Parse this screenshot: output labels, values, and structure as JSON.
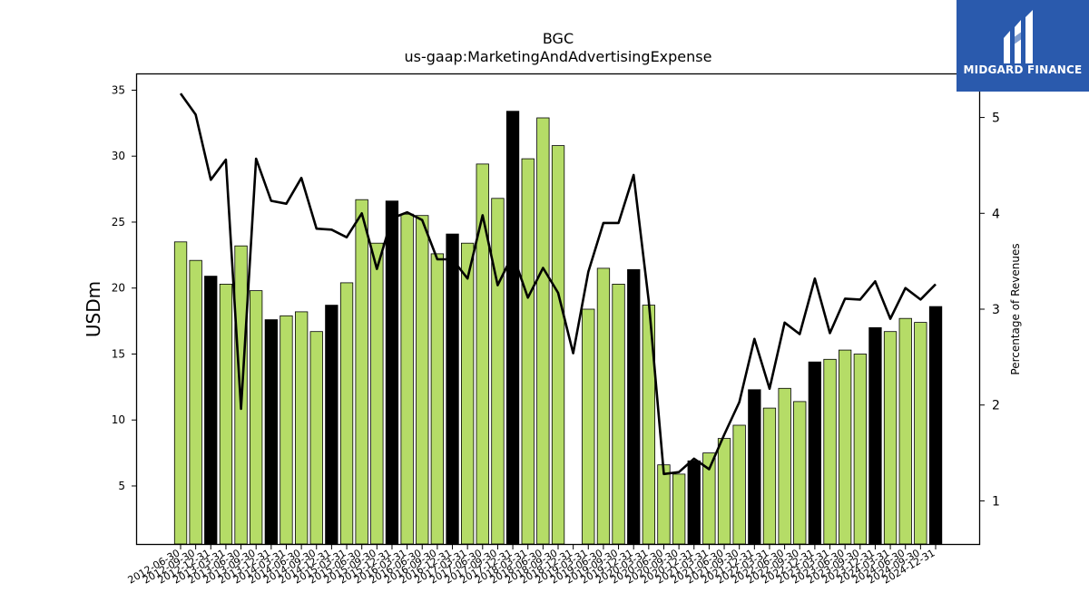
{
  "brand": {
    "name": "MIDGARD FINANCE",
    "bg": "#2a5aad"
  },
  "chart_data": {
    "type": "bar",
    "title": "BGC",
    "subtitle": "us-gaap:MarketingAndAdvertisingExpense",
    "ylabel": "USDm",
    "y2label": "Percentage of Revenues",
    "ylim": [
      0.6,
      36.2
    ],
    "y2lim": [
      0.55,
      5.45
    ],
    "yticks": [
      5,
      10,
      15,
      20,
      25,
      30,
      35
    ],
    "y2ticks": [
      1,
      2,
      3,
      4,
      5
    ],
    "colors": {
      "quarter": "#b5dc67",
      "fiscal_year_end": "#000000",
      "line": "#000000"
    },
    "categories": [
      "2012-06-30",
      "2012-09-30",
      "2012-12-31",
      "2013-03-31",
      "2013-06-30",
      "2013-09-30",
      "2013-12-31",
      "2014-03-31",
      "2014-06-30",
      "2014-09-30",
      "2014-12-31",
      "2015-03-31",
      "2015-06-30",
      "2015-09-30",
      "2015-12-31",
      "2016-03-31",
      "2016-06-30",
      "2016-09-30",
      "2016-12-31",
      "2017-03-31",
      "2017-06-30",
      "2017-09-30",
      "2017-12-31",
      "2018-03-31",
      "2018-06-30",
      "2018-09-30",
      "2018-12-31",
      "2019-03-31",
      "2019-06-30",
      "2019-09-30",
      "2019-12-31",
      "2020-03-31",
      "2020-06-30",
      "2020-09-30",
      "2020-12-31",
      "2021-03-31",
      "2021-06-30",
      "2021-09-30",
      "2021-12-31",
      "2022-03-31",
      "2022-06-30",
      "2022-09-30",
      "2022-12-31",
      "2023-03-31",
      "2023-06-30",
      "2023-09-30",
      "2023-12-31",
      "2024-03-31",
      "2024-06-30",
      "2024-09-30",
      "2024-12-31"
    ],
    "series": [
      {
        "kind": "bar",
        "values": [
          23.5,
          22.1,
          20.9,
          20.3,
          23.2,
          19.8,
          17.6,
          17.9,
          18.2,
          16.7,
          18.7,
          20.4,
          26.7,
          23.4,
          26.6,
          25.6,
          25.5,
          22.6,
          24.1,
          23.4,
          29.4,
          26.8,
          33.4,
          29.8,
          32.9,
          30.8,
          null,
          18.4,
          21.5,
          20.3,
          21.4,
          18.7,
          6.6,
          5.9,
          6.9,
          7.5,
          8.6,
          9.6,
          12.3,
          10.9,
          12.4,
          11.4,
          14.4,
          14.6,
          15.3,
          15.0,
          17.0,
          16.7,
          17.7,
          17.4,
          18.6
        ],
        "fiscal_year_end": [
          false,
          false,
          true,
          false,
          false,
          false,
          true,
          false,
          false,
          false,
          true,
          false,
          false,
          false,
          true,
          false,
          false,
          false,
          true,
          false,
          false,
          false,
          true,
          false,
          false,
          false,
          true,
          false,
          false,
          false,
          true,
          false,
          false,
          false,
          true,
          false,
          false,
          false,
          true,
          false,
          false,
          false,
          true,
          false,
          false,
          false,
          true,
          false,
          false,
          false,
          true
        ]
      },
      {
        "kind": "line",
        "axis": "right",
        "values": [
          5.25,
          5.03,
          4.35,
          4.56,
          1.96,
          4.57,
          4.13,
          4.1,
          4.37,
          3.84,
          3.83,
          3.75,
          4.0,
          3.42,
          3.95,
          4.01,
          3.93,
          3.52,
          3.52,
          3.32,
          3.98,
          3.25,
          3.57,
          3.12,
          3.43,
          3.17,
          2.54,
          3.39,
          3.9,
          3.9,
          4.4,
          3.09,
          1.28,
          1.3,
          1.44,
          1.33,
          1.69,
          2.03,
          2.69,
          2.17,
          2.86,
          2.74,
          3.32,
          2.75,
          3.11,
          3.1,
          3.29,
          2.9,
          3.22,
          3.1,
          3.26
        ]
      }
    ]
  }
}
